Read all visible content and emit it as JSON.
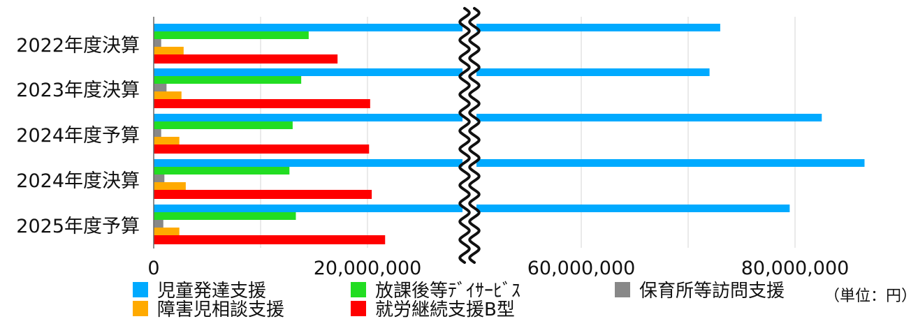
{
  "chart_data": {
    "type": "bar",
    "orientation": "horizontal",
    "broken_axis": true,
    "categories": [
      "2022年度決算",
      "2023年度決算",
      "2024年度予算",
      "2024年度決算",
      "2025年度予算"
    ],
    "series": [
      {
        "name": "児童発達支援",
        "color": "#00aaff",
        "values": [
          73000000,
          72000000,
          82500000,
          86500000,
          79500000
        ]
      },
      {
        "name": "放課後等ﾃﾞｲｻｰﾋﾞｽ",
        "color": "#22dd22",
        "values": [
          14500000,
          13800000,
          13000000,
          12700000,
          13300000
        ]
      },
      {
        "name": "保育所等訪問支援",
        "color": "#888888",
        "values": [
          700000,
          1200000,
          700000,
          1000000,
          900000
        ]
      },
      {
        "name": "障害児相談支援",
        "color": "#ffaa00",
        "values": [
          2800000,
          2600000,
          2400000,
          3000000,
          2400000
        ]
      },
      {
        "name": "就労継続支援B型",
        "color": "#ff0000",
        "values": [
          17200000,
          20500000,
          20300000,
          20800000,
          23300000
        ]
      }
    ],
    "x_ticks": [
      {
        "value": 0,
        "label": "0"
      },
      {
        "value": 20000000,
        "label": "20,000,000"
      },
      {
        "value": 60000000,
        "label": "60,000,000"
      },
      {
        "value": 80000000,
        "label": "80,000,000"
      }
    ],
    "unit_note": "（単位：円）",
    "grid": true,
    "legend_position": "bottom"
  }
}
